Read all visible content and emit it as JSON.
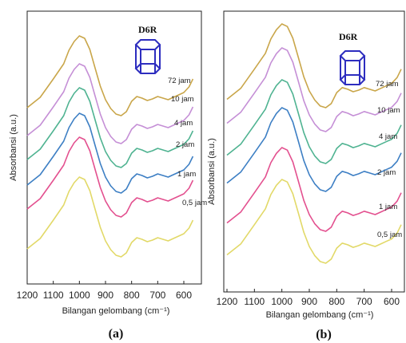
{
  "chart_data": [
    {
      "type": "line",
      "panel_label": "(a)",
      "inset_label": "D6R",
      "xlabel": "Bilangan gelombang (cm⁻¹)",
      "ylabel": "Absorbansi (a.u.)",
      "x_ticks": [
        1200,
        1100,
        1000,
        900,
        800,
        700,
        600
      ],
      "xlim": [
        1200,
        560
      ],
      "x": [
        1200,
        1150,
        1100,
        1060,
        1040,
        1020,
        1000,
        980,
        960,
        940,
        920,
        900,
        880,
        860,
        840,
        820,
        800,
        780,
        760,
        740,
        720,
        700,
        680,
        660,
        640,
        620,
        600,
        580,
        565
      ],
      "series": [
        {
          "name": "72 jam",
          "color": "#c9a64a",
          "values": [
            0.1,
            0.23,
            0.46,
            0.65,
            0.82,
            0.93,
            1.0,
            0.97,
            0.83,
            0.6,
            0.37,
            0.2,
            0.09,
            0.02,
            0.0,
            0.05,
            0.18,
            0.24,
            0.22,
            0.19,
            0.21,
            0.24,
            0.22,
            0.2,
            0.23,
            0.26,
            0.29,
            0.36,
            0.46
          ]
        },
        {
          "name": "10 jam",
          "color": "#c58fd6",
          "values": [
            0.1,
            0.23,
            0.46,
            0.65,
            0.82,
            0.93,
            1.0,
            0.97,
            0.83,
            0.6,
            0.37,
            0.2,
            0.09,
            0.02,
            0.0,
            0.05,
            0.18,
            0.24,
            0.22,
            0.19,
            0.21,
            0.24,
            0.22,
            0.2,
            0.23,
            0.26,
            0.29,
            0.36,
            0.46
          ]
        },
        {
          "name": "4 jam",
          "color": "#4fb391",
          "values": [
            0.1,
            0.23,
            0.46,
            0.65,
            0.82,
            0.93,
            1.0,
            0.97,
            0.83,
            0.6,
            0.37,
            0.2,
            0.09,
            0.02,
            0.0,
            0.05,
            0.18,
            0.24,
            0.22,
            0.19,
            0.21,
            0.24,
            0.22,
            0.2,
            0.23,
            0.26,
            0.29,
            0.36,
            0.46
          ]
        },
        {
          "name": "2 jam",
          "color": "#3d7fc4",
          "values": [
            0.1,
            0.23,
            0.46,
            0.65,
            0.82,
            0.93,
            1.0,
            0.97,
            0.83,
            0.6,
            0.37,
            0.2,
            0.09,
            0.02,
            0.0,
            0.05,
            0.18,
            0.24,
            0.22,
            0.19,
            0.21,
            0.24,
            0.22,
            0.2,
            0.23,
            0.26,
            0.29,
            0.36,
            0.46
          ]
        },
        {
          "name": "1 jam",
          "color": "#e3508f",
          "values": [
            0.1,
            0.23,
            0.46,
            0.65,
            0.82,
            0.93,
            1.0,
            0.97,
            0.83,
            0.6,
            0.37,
            0.2,
            0.09,
            0.02,
            0.0,
            0.05,
            0.18,
            0.24,
            0.22,
            0.19,
            0.21,
            0.24,
            0.22,
            0.2,
            0.23,
            0.26,
            0.29,
            0.36,
            0.46
          ]
        },
        {
          "name": "0,5 jam",
          "color": "#e2d968",
          "values": [
            0.1,
            0.23,
            0.46,
            0.65,
            0.82,
            0.93,
            1.0,
            0.97,
            0.83,
            0.6,
            0.37,
            0.2,
            0.09,
            0.02,
            0.0,
            0.05,
            0.18,
            0.24,
            0.22,
            0.19,
            0.21,
            0.24,
            0.22,
            0.2,
            0.23,
            0.26,
            0.29,
            0.36,
            0.46
          ]
        }
      ]
    },
    {
      "type": "line",
      "panel_label": "(b)",
      "inset_label": "D6R",
      "xlabel": "Bilangan gelombang (cm⁻¹)",
      "ylabel": "Absorbansi (a.u.)",
      "x_ticks": [
        1200,
        1100,
        1000,
        900,
        800,
        700,
        600
      ],
      "xlim": [
        1200,
        560
      ],
      "x": [
        1200,
        1150,
        1100,
        1060,
        1040,
        1020,
        1000,
        980,
        960,
        940,
        920,
        900,
        880,
        860,
        840,
        820,
        800,
        780,
        760,
        740,
        720,
        700,
        680,
        660,
        640,
        620,
        600,
        580,
        565
      ],
      "series": [
        {
          "name": "72 jam",
          "color": "#c9a64a",
          "values": [
            0.1,
            0.23,
            0.46,
            0.65,
            0.82,
            0.93,
            1.0,
            0.97,
            0.83,
            0.6,
            0.37,
            0.2,
            0.09,
            0.02,
            0.0,
            0.05,
            0.18,
            0.24,
            0.22,
            0.19,
            0.21,
            0.24,
            0.22,
            0.2,
            0.23,
            0.26,
            0.29,
            0.36,
            0.46
          ]
        },
        {
          "name": "10 jam",
          "color": "#c58fd6",
          "values": [
            0.1,
            0.23,
            0.46,
            0.65,
            0.82,
            0.93,
            1.0,
            0.97,
            0.83,
            0.6,
            0.37,
            0.2,
            0.09,
            0.02,
            0.0,
            0.05,
            0.18,
            0.24,
            0.22,
            0.19,
            0.21,
            0.24,
            0.22,
            0.2,
            0.23,
            0.26,
            0.29,
            0.36,
            0.46
          ]
        },
        {
          "name": "4 jam",
          "color": "#4fb391",
          "values": [
            0.1,
            0.23,
            0.46,
            0.65,
            0.82,
            0.93,
            1.0,
            0.97,
            0.83,
            0.6,
            0.37,
            0.2,
            0.09,
            0.02,
            0.0,
            0.05,
            0.18,
            0.24,
            0.22,
            0.19,
            0.21,
            0.24,
            0.22,
            0.2,
            0.23,
            0.26,
            0.29,
            0.36,
            0.46
          ]
        },
        {
          "name": "2 jam",
          "color": "#3d7fc4",
          "values": [
            0.1,
            0.23,
            0.46,
            0.65,
            0.82,
            0.93,
            1.0,
            0.97,
            0.83,
            0.6,
            0.37,
            0.2,
            0.09,
            0.02,
            0.0,
            0.05,
            0.18,
            0.24,
            0.22,
            0.19,
            0.21,
            0.24,
            0.22,
            0.2,
            0.23,
            0.26,
            0.29,
            0.36,
            0.46
          ]
        },
        {
          "name": "1 jam",
          "color": "#e3508f",
          "values": [
            0.1,
            0.23,
            0.46,
            0.65,
            0.82,
            0.93,
            1.0,
            0.97,
            0.83,
            0.6,
            0.37,
            0.2,
            0.09,
            0.02,
            0.0,
            0.05,
            0.18,
            0.24,
            0.22,
            0.19,
            0.21,
            0.24,
            0.22,
            0.2,
            0.23,
            0.26,
            0.29,
            0.36,
            0.46
          ]
        },
        {
          "name": "0,5 jam",
          "color": "#e2d968",
          "values": [
            0.1,
            0.23,
            0.46,
            0.65,
            0.82,
            0.93,
            1.0,
            0.97,
            0.83,
            0.6,
            0.37,
            0.2,
            0.09,
            0.02,
            0.0,
            0.05,
            0.18,
            0.24,
            0.22,
            0.19,
            0.21,
            0.24,
            0.22,
            0.2,
            0.23,
            0.26,
            0.29,
            0.36,
            0.46
          ]
        }
      ]
    }
  ],
  "colors": {
    "axis": "#222222",
    "crystal": "#2d2dbf"
  }
}
